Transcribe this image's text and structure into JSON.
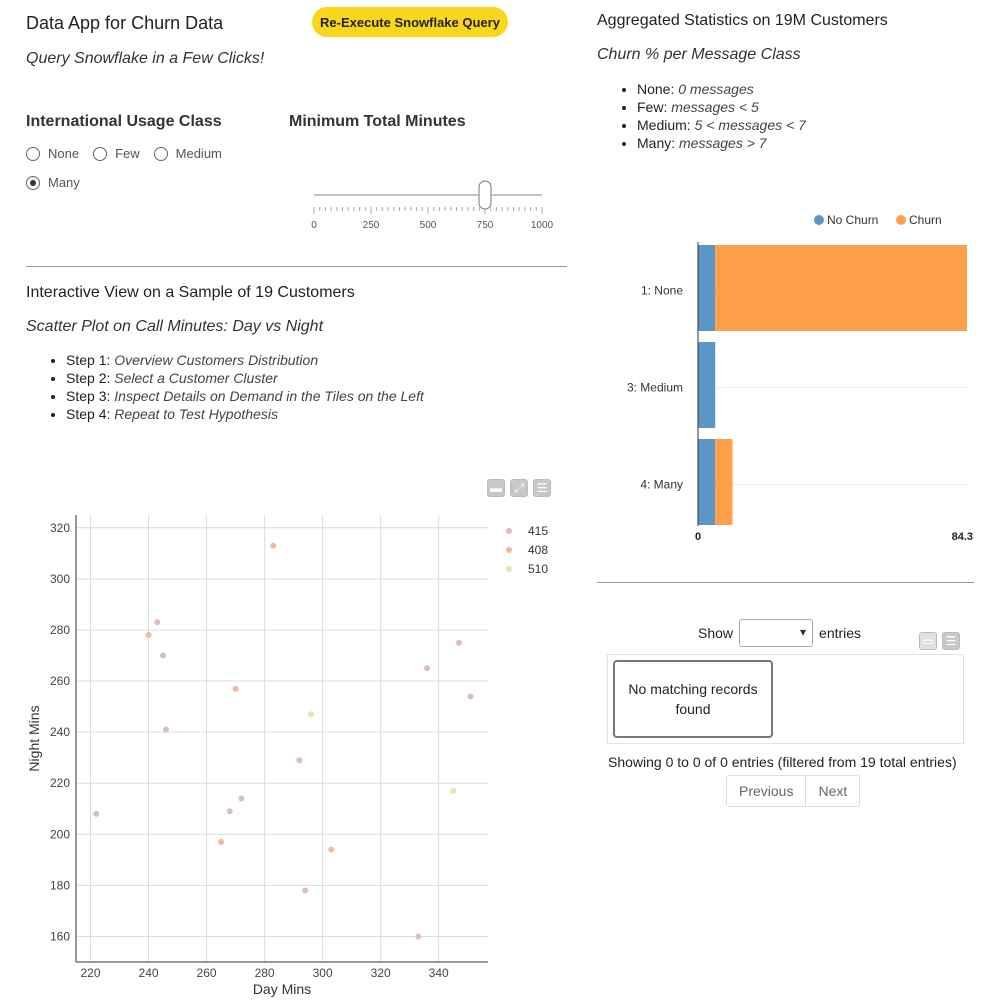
{
  "app": {
    "title": "Data App for Churn Data",
    "subtitle": "Query Snowflake in a Few Clicks!",
    "rerun_button": "Re-Execute Snowflake Query"
  },
  "filters": {
    "usage_class": {
      "label": "International Usage Class",
      "options": [
        "None",
        "Few",
        "Medium",
        "Many"
      ],
      "selected": "Many"
    },
    "min_minutes": {
      "label": "Minimum Total Minutes",
      "value": 750,
      "min": 0,
      "max": 1000,
      "tick_labels": [
        "0",
        "250",
        "500",
        "750",
        "1000"
      ]
    }
  },
  "interactive": {
    "title": "Interactive View on a Sample of 19 Customers",
    "subtitle": "Scatter Plot on Call Minutes: Day vs Night",
    "steps": [
      {
        "label": "Step 1:",
        "text": "Overview Customers Distribution"
      },
      {
        "label": "Step 2:",
        "text": "Select a Customer Cluster"
      },
      {
        "label": "Step 3:",
        "text": "Inspect Details on Demand in the Tiles on the Left"
      },
      {
        "label": "Step 4:",
        "text": "Repeat to Test Hypothesis"
      }
    ]
  },
  "aggregated": {
    "title": "Aggregated Statistics on 19M Customers",
    "subtitle": "Churn % per Message Class",
    "classes": [
      {
        "name": "None:",
        "desc": "0 messages"
      },
      {
        "name": "Few:",
        "desc": "messages < 5"
      },
      {
        "name": "Medium:",
        "desc": "5 < messages < 7"
      },
      {
        "name": "Many:",
        "desc": "messages > 7"
      }
    ]
  },
  "table": {
    "show_label": "Show",
    "entries_label": "entries",
    "empty_message": "No matching records found",
    "info": "Showing 0 to 0 of 0 entries (filtered from 19 total entries)",
    "prev_label": "Previous",
    "next_label": "Next"
  },
  "colors": {
    "accent_yellow": "#f9d71c",
    "no_churn": "#5b96c5",
    "churn": "#ff9f4a",
    "series_415": "#d9b8d9",
    "series_408": "#f4b8a0",
    "series_510": "#e2e8a6"
  },
  "chart_data": [
    {
      "type": "scatter",
      "title": "",
      "xlabel": "Day Mins",
      "ylabel": "Night Mins",
      "xlim": [
        215,
        357
      ],
      "ylim": [
        150,
        325
      ],
      "xticks": [
        220,
        240,
        260,
        280,
        300,
        320,
        340
      ],
      "yticks": [
        160,
        180,
        200,
        220,
        240,
        260,
        280,
        300,
        320
      ],
      "grid": true,
      "legend": "top-right",
      "series": [
        {
          "name": "415",
          "color": "#d9b8d9",
          "points": [
            [
              222,
              208
            ],
            [
              243,
              283
            ],
            [
              245,
              270
            ],
            [
              246,
              241
            ],
            [
              268,
              209
            ],
            [
              272,
              214
            ],
            [
              292,
              229
            ],
            [
              294,
              178
            ],
            [
              333,
              160
            ],
            [
              336,
              265
            ],
            [
              347,
              275
            ],
            [
              351,
              254
            ]
          ]
        },
        {
          "name": "408",
          "color": "#f4b8a0",
          "points": [
            [
              240,
              278
            ],
            [
              265,
              197
            ],
            [
              270,
              257
            ],
            [
              283,
              313
            ],
            [
              303,
              194
            ]
          ]
        },
        {
          "name": "510",
          "color": "#e2e8a6",
          "points": [
            [
              296,
              247
            ],
            [
              345,
              217
            ]
          ]
        }
      ]
    },
    {
      "type": "bar",
      "orientation": "horizontal",
      "stacked": true,
      "categories": [
        "1: None",
        "3: Medium",
        "4: Many"
      ],
      "xlim": [
        0,
        84.3
      ],
      "xtick_labels": [
        "0",
        "84.3"
      ],
      "legend": "top-right",
      "series": [
        {
          "name": "No Churn",
          "color": "#5b96c5",
          "values": [
            5.4,
            5.4,
            5.4
          ]
        },
        {
          "name": "Churn",
          "color": "#ff9f4a",
          "values": [
            78.9,
            0,
            5.4
          ]
        }
      ]
    }
  ]
}
